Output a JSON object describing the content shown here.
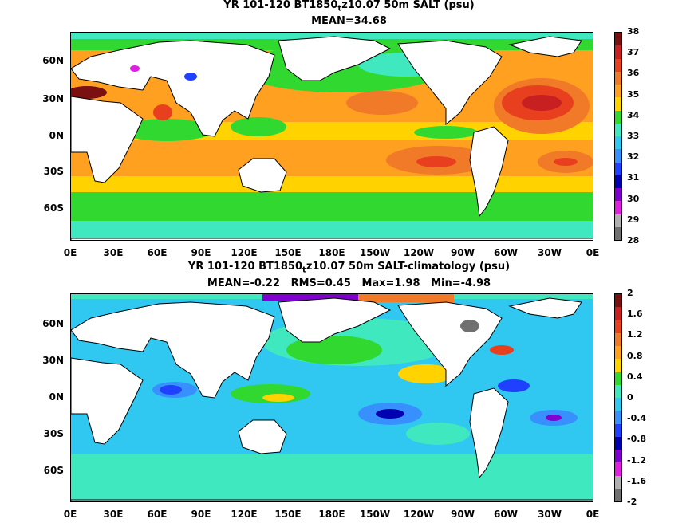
{
  "top": {
    "title_pre": "YR 101-120 BT1850",
    "title_sub": "t",
    "title_post": "z10.07 50m SALT (psu)",
    "subtitle": "MEAN=34.68",
    "colorbar": {
      "labels": [
        "38",
        "37",
        "36",
        "35",
        "34",
        "33",
        "32",
        "31",
        "30",
        "29",
        "28"
      ],
      "colors": [
        "#7a1010",
        "#c82020",
        "#e8401e",
        "#f07a28",
        "#ffa020",
        "#ffd200",
        "#30d830",
        "#40e8c0",
        "#30c8f0",
        "#3890ff",
        "#2040ff",
        "#0000b0",
        "#8000d0",
        "#e020e0",
        "#b0b0b0",
        "#707070"
      ]
    }
  },
  "bottom": {
    "title_pre": "YR 101-120 BT1850",
    "title_sub": "t",
    "title_post": "z10.07 50m SALT-climatology (psu)",
    "subtitle": "MEAN=-0.22   RMS=0.45   Max=1.98   Min=-4.98",
    "colorbar": {
      "labels": [
        "2",
        "1.6",
        "1.2",
        "0.8",
        "0.4",
        "0",
        "-0.4",
        "-0.8",
        "-1.2",
        "-1.6",
        "-2"
      ],
      "colors": [
        "#7a1010",
        "#c82020",
        "#e8401e",
        "#f07a28",
        "#ffa020",
        "#ffd200",
        "#30d830",
        "#40e8c0",
        "#30c8f0",
        "#3890ff",
        "#2040ff",
        "#0000b0",
        "#8000d0",
        "#e020e0",
        "#b0b0b0",
        "#707070"
      ]
    }
  },
  "lat_labels": [
    "60N",
    "30N",
    "0N",
    "30S",
    "60S"
  ],
  "lon_labels": [
    "0E",
    "30E",
    "60E",
    "90E",
    "120E",
    "150E",
    "180E",
    "150W",
    "120W",
    "90W",
    "60W",
    "30W",
    "0E"
  ]
}
